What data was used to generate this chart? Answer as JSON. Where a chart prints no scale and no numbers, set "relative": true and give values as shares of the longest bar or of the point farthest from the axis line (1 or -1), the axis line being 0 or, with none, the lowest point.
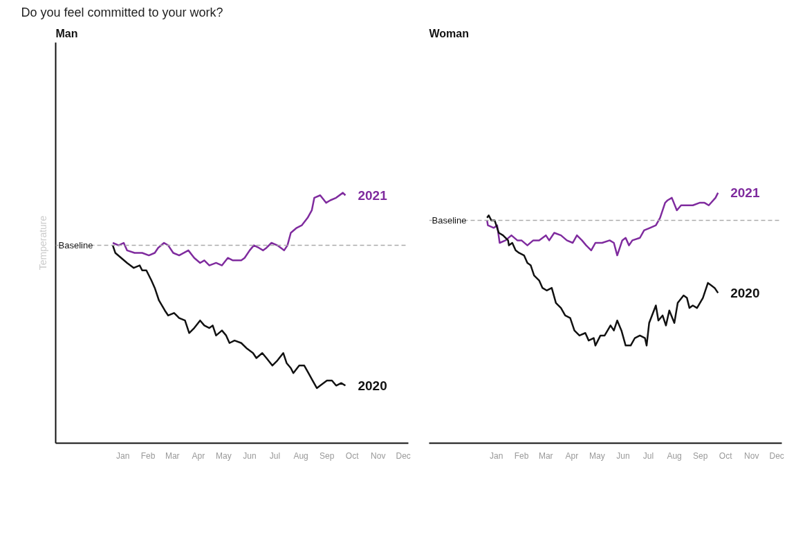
{
  "chart_data": [
    {
      "type": "line",
      "title": "Do you feel committed to your work?",
      "subtitle": "Man",
      "ylabel": "Temperature",
      "relative": true,
      "xlim": [
        "2020-10-27",
        "2021-12-21"
      ],
      "xticks": [
        {
          "value": "2021-01-15",
          "label": "Jan"
        },
        {
          "value": "2021-02-14",
          "label": "Feb"
        },
        {
          "value": "2021-03-15",
          "label": "Mar"
        },
        {
          "value": "2021-04-15",
          "label": "Apr"
        },
        {
          "value": "2021-05-15",
          "label": "May"
        },
        {
          "value": "2021-06-15",
          "label": "Jun"
        },
        {
          "value": "2021-07-15",
          "label": "Jul"
        },
        {
          "value": "2021-08-15",
          "label": "Aug"
        },
        {
          "value": "2021-09-15",
          "label": "Sep"
        },
        {
          "value": "2021-10-15",
          "label": "Oct"
        },
        {
          "value": "2021-11-15",
          "label": "Nov"
        },
        {
          "value": "2021-12-15",
          "label": "Dec"
        }
      ],
      "ref_lines": [
        {
          "axis": "y",
          "value": 0.79,
          "label": "Baseline",
          "color": "#aaaaaa",
          "line_style": "dashed"
        }
      ],
      "series": [
        {
          "name": "2021",
          "color": "#7f2b9e",
          "x": [
            "2021-01-03",
            "2021-01-10",
            "2021-01-16",
            "2021-01-20",
            "2021-01-29",
            "2021-02-07",
            "2021-02-15",
            "2021-02-22",
            "2021-02-26",
            "2021-03-05",
            "2021-03-10",
            "2021-03-16",
            "2021-03-23",
            "2021-04-03",
            "2021-04-10",
            "2021-04-17",
            "2021-04-22",
            "2021-04-28",
            "2021-05-06",
            "2021-05-13",
            "2021-05-20",
            "2021-05-26",
            "2021-06-05",
            "2021-06-09",
            "2021-06-15",
            "2021-06-20",
            "2021-06-26",
            "2021-07-01",
            "2021-07-05",
            "2021-07-11",
            "2021-07-18",
            "2021-07-26",
            "2021-07-30",
            "2021-08-03",
            "2021-08-10",
            "2021-08-16",
            "2021-08-23",
            "2021-08-28",
            "2021-08-31",
            "2021-09-07",
            "2021-09-14",
            "2021-09-19",
            "2021-09-26",
            "2021-10-04",
            "2021-10-07"
          ],
          "values": [
            0.8,
            0.79,
            0.8,
            0.77,
            0.76,
            0.76,
            0.75,
            0.76,
            0.78,
            0.8,
            0.79,
            0.76,
            0.75,
            0.77,
            0.74,
            0.72,
            0.73,
            0.71,
            0.72,
            0.71,
            0.74,
            0.73,
            0.73,
            0.74,
            0.77,
            0.79,
            0.78,
            0.77,
            0.78,
            0.8,
            0.79,
            0.77,
            0.79,
            0.84,
            0.86,
            0.87,
            0.9,
            0.93,
            0.98,
            0.99,
            0.96,
            0.97,
            0.98,
            1.0,
            0.99
          ]
        },
        {
          "name": "2020",
          "color": "#111111",
          "x": [
            "2021-01-03",
            "2021-01-06",
            "2021-01-13",
            "2021-01-20",
            "2021-01-28",
            "2021-02-04",
            "2021-02-07",
            "2021-02-12",
            "2021-02-18",
            "2021-02-22",
            "2021-02-27",
            "2021-03-06",
            "2021-03-10",
            "2021-03-17",
            "2021-03-23",
            "2021-03-30",
            "2021-04-04",
            "2021-04-10",
            "2021-04-17",
            "2021-04-22",
            "2021-04-28",
            "2021-05-02",
            "2021-05-06",
            "2021-05-13",
            "2021-05-18",
            "2021-05-22",
            "2021-05-28",
            "2021-06-05",
            "2021-06-11",
            "2021-06-19",
            "2021-06-23",
            "2021-06-30",
            "2021-07-05",
            "2021-07-12",
            "2021-07-18",
            "2021-07-25",
            "2021-07-29",
            "2021-08-03",
            "2021-08-06",
            "2021-08-13",
            "2021-08-19",
            "2021-08-24",
            "2021-08-29",
            "2021-09-03",
            "2021-09-07",
            "2021-09-15",
            "2021-09-21",
            "2021-09-26",
            "2021-10-02",
            "2021-10-07"
          ],
          "values": [
            0.79,
            0.76,
            0.74,
            0.72,
            0.7,
            0.71,
            0.69,
            0.69,
            0.65,
            0.62,
            0.57,
            0.53,
            0.51,
            0.52,
            0.5,
            0.49,
            0.44,
            0.46,
            0.49,
            0.47,
            0.46,
            0.47,
            0.43,
            0.45,
            0.43,
            0.4,
            0.41,
            0.4,
            0.38,
            0.36,
            0.34,
            0.36,
            0.34,
            0.31,
            0.33,
            0.36,
            0.32,
            0.3,
            0.28,
            0.31,
            0.31,
            0.28,
            0.25,
            0.22,
            0.23,
            0.25,
            0.25,
            0.23,
            0.24,
            0.23
          ]
        }
      ]
    },
    {
      "type": "line",
      "subtitle": "Woman",
      "relative": true,
      "xlim": [
        "2020-10-27",
        "2021-12-21"
      ],
      "xticks": [
        {
          "value": "2021-01-15",
          "label": "Jan"
        },
        {
          "value": "2021-02-14",
          "label": "Feb"
        },
        {
          "value": "2021-03-15",
          "label": "Mar"
        },
        {
          "value": "2021-04-15",
          "label": "Apr"
        },
        {
          "value": "2021-05-15",
          "label": "May"
        },
        {
          "value": "2021-06-15",
          "label": "Jun"
        },
        {
          "value": "2021-07-15",
          "label": "Jul"
        },
        {
          "value": "2021-08-15",
          "label": "Aug"
        },
        {
          "value": "2021-09-15",
          "label": "Sep"
        },
        {
          "value": "2021-10-15",
          "label": "Oct"
        },
        {
          "value": "2021-11-15",
          "label": "Nov"
        },
        {
          "value": "2021-12-15",
          "label": "Dec"
        }
      ],
      "ref_lines": [
        {
          "axis": "y",
          "value": 0.89,
          "label": "Baseline",
          "color": "#aaaaaa",
          "line_style": "dashed"
        }
      ],
      "series": [
        {
          "name": "2021",
          "color": "#7f2b9e",
          "x": [
            "2021-01-04",
            "2021-01-05",
            "2021-01-12",
            "2021-01-16",
            "2021-01-19",
            "2021-01-26",
            "2021-02-02",
            "2021-02-09",
            "2021-02-14",
            "2021-02-21",
            "2021-02-28",
            "2021-03-07",
            "2021-03-15",
            "2021-03-19",
            "2021-03-25",
            "2021-04-02",
            "2021-04-09",
            "2021-04-16",
            "2021-04-21",
            "2021-04-27",
            "2021-05-02",
            "2021-05-08",
            "2021-05-13",
            "2021-05-21",
            "2021-05-30",
            "2021-06-04",
            "2021-06-08",
            "2021-06-14",
            "2021-06-18",
            "2021-06-22",
            "2021-06-26",
            "2021-07-05",
            "2021-07-10",
            "2021-07-17",
            "2021-07-24",
            "2021-07-29",
            "2021-08-04",
            "2021-08-07",
            "2021-08-12",
            "2021-08-18",
            "2021-08-23",
            "2021-08-29",
            "2021-09-06",
            "2021-09-14",
            "2021-09-20",
            "2021-09-25",
            "2021-10-03",
            "2021-10-06"
          ],
          "values": [
            0.89,
            0.87,
            0.86,
            0.87,
            0.8,
            0.81,
            0.83,
            0.81,
            0.81,
            0.79,
            0.81,
            0.81,
            0.83,
            0.81,
            0.84,
            0.83,
            0.81,
            0.8,
            0.83,
            0.81,
            0.79,
            0.77,
            0.8,
            0.8,
            0.81,
            0.8,
            0.75,
            0.81,
            0.82,
            0.79,
            0.81,
            0.82,
            0.85,
            0.86,
            0.87,
            0.9,
            0.96,
            0.97,
            0.98,
            0.93,
            0.95,
            0.95,
            0.95,
            0.96,
            0.96,
            0.95,
            0.98,
            1.0
          ]
        },
        {
          "name": "2020",
          "color": "#111111",
          "x": [
            "2021-01-04",
            "2021-01-06",
            "2021-01-09",
            "2021-01-13",
            "2021-01-18",
            "2021-01-23",
            "2021-01-29",
            "2021-01-30",
            "2021-02-03",
            "2021-02-07",
            "2021-02-11",
            "2021-02-17",
            "2021-02-21",
            "2021-02-25",
            "2021-03-01",
            "2021-03-07",
            "2021-03-11",
            "2021-03-16",
            "2021-03-22",
            "2021-03-27",
            "2021-04-02",
            "2021-04-07",
            "2021-04-13",
            "2021-04-18",
            "2021-04-24",
            "2021-05-01",
            "2021-05-05",
            "2021-05-11",
            "2021-05-13",
            "2021-05-19",
            "2021-05-24",
            "2021-05-31",
            "2021-06-04",
            "2021-06-08",
            "2021-06-13",
            "2021-06-18",
            "2021-06-24",
            "2021-06-29",
            "2021-07-05",
            "2021-07-11",
            "2021-07-13",
            "2021-07-16",
            "2021-07-24",
            "2021-07-27",
            "2021-08-01",
            "2021-08-05",
            "2021-08-09",
            "2021-08-15",
            "2021-08-19",
            "2021-08-26",
            "2021-08-30",
            "2021-09-02",
            "2021-09-06",
            "2021-09-11",
            "2021-09-18",
            "2021-09-24",
            "2021-09-28",
            "2021-10-02",
            "2021-10-06"
          ],
          "values": [
            0.9,
            0.91,
            0.89,
            0.89,
            0.84,
            0.83,
            0.81,
            0.79,
            0.8,
            0.77,
            0.76,
            0.75,
            0.72,
            0.71,
            0.67,
            0.65,
            0.62,
            0.61,
            0.62,
            0.56,
            0.54,
            0.51,
            0.5,
            0.45,
            0.43,
            0.44,
            0.41,
            0.42,
            0.39,
            0.43,
            0.43,
            0.47,
            0.45,
            0.49,
            0.45,
            0.39,
            0.39,
            0.42,
            0.43,
            0.42,
            0.39,
            0.48,
            0.55,
            0.49,
            0.51,
            0.47,
            0.53,
            0.48,
            0.56,
            0.59,
            0.58,
            0.54,
            0.55,
            0.54,
            0.58,
            0.64,
            0.63,
            0.62,
            0.6
          ]
        }
      ]
    }
  ]
}
